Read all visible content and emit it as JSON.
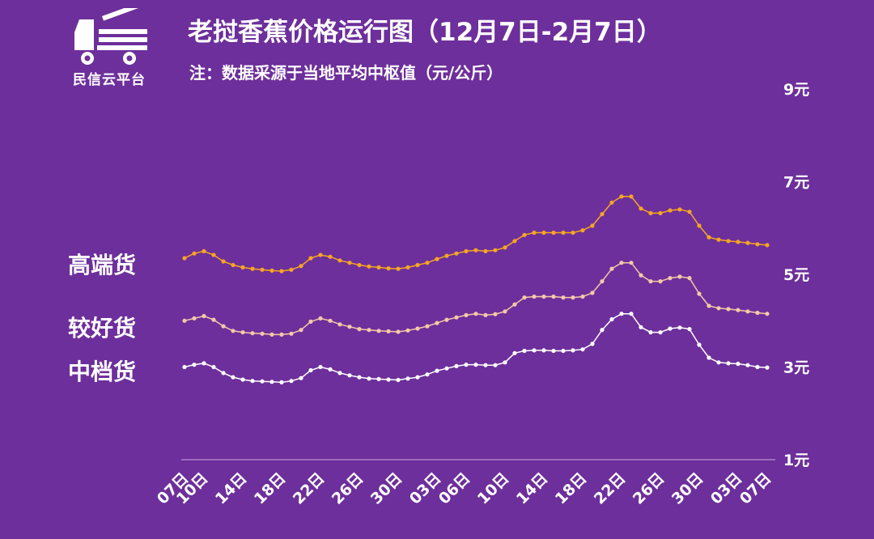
{
  "brand": {
    "name": "民信云平台"
  },
  "chart_data": {
    "type": "line",
    "title": "老挝香蕉价格运行图（12月7日-2月7日）",
    "subtitle": "注：数据采源于当地平均中枢值（元/公斤）",
    "ylim": [
      1,
      9
    ],
    "y_ticks": [
      1,
      3,
      5,
      7,
      9
    ],
    "y_tick_labels": [
      "1元",
      "3元",
      "5元",
      "7元",
      "9元"
    ],
    "x_tick_labels": [
      "07日",
      "10日",
      "14日",
      "18日",
      "22日",
      "26日",
      "30日",
      "03日",
      "06日",
      "10日",
      "14日",
      "18日",
      "22日",
      "26日",
      "30日",
      "03日",
      "07日"
    ],
    "x_tick_index": [
      0,
      2,
      6,
      10,
      14,
      18,
      22,
      26,
      29,
      33,
      37,
      41,
      45,
      49,
      53,
      57,
      60
    ],
    "series": [
      {
        "name": "高端货",
        "color": "#f5a623",
        "values": [
          5.35,
          5.45,
          5.5,
          5.42,
          5.28,
          5.2,
          5.15,
          5.12,
          5.1,
          5.08,
          5.07,
          5.1,
          5.18,
          5.35,
          5.42,
          5.38,
          5.3,
          5.25,
          5.2,
          5.17,
          5.15,
          5.13,
          5.12,
          5.15,
          5.2,
          5.25,
          5.33,
          5.4,
          5.45,
          5.5,
          5.52,
          5.5,
          5.52,
          5.58,
          5.72,
          5.85,
          5.9,
          5.9,
          5.9,
          5.9,
          5.9,
          5.95,
          6.05,
          6.3,
          6.55,
          6.68,
          6.68,
          6.42,
          6.32,
          6.32,
          6.38,
          6.4,
          6.35,
          6.05,
          5.8,
          5.75,
          5.72,
          5.7,
          5.68,
          5.65,
          5.63
        ]
      },
      {
        "name": "较好货",
        "color": "#f4c9a8",
        "values": [
          4.0,
          4.05,
          4.1,
          4.02,
          3.88,
          3.78,
          3.75,
          3.73,
          3.72,
          3.7,
          3.7,
          3.72,
          3.8,
          3.98,
          4.05,
          4.0,
          3.92,
          3.87,
          3.82,
          3.8,
          3.78,
          3.77,
          3.76,
          3.79,
          3.83,
          3.88,
          3.95,
          4.02,
          4.07,
          4.12,
          4.15,
          4.12,
          4.14,
          4.2,
          4.35,
          4.5,
          4.52,
          4.52,
          4.52,
          4.5,
          4.5,
          4.52,
          4.6,
          4.85,
          5.12,
          5.25,
          5.25,
          4.98,
          4.85,
          4.85,
          4.92,
          4.95,
          4.92,
          4.58,
          4.32,
          4.27,
          4.25,
          4.23,
          4.2,
          4.17,
          4.15
        ]
      },
      {
        "name": "中档货",
        "color": "#ffffff",
        "values": [
          3.0,
          3.05,
          3.08,
          3.0,
          2.87,
          2.78,
          2.73,
          2.7,
          2.69,
          2.68,
          2.67,
          2.7,
          2.76,
          2.93,
          3.0,
          2.95,
          2.87,
          2.82,
          2.78,
          2.75,
          2.74,
          2.73,
          2.72,
          2.75,
          2.78,
          2.84,
          2.92,
          2.97,
          3.02,
          3.05,
          3.05,
          3.04,
          3.04,
          3.1,
          3.3,
          3.35,
          3.36,
          3.36,
          3.35,
          3.35,
          3.36,
          3.38,
          3.5,
          3.8,
          4.03,
          4.15,
          4.15,
          3.86,
          3.75,
          3.75,
          3.83,
          3.85,
          3.82,
          3.48,
          3.2,
          3.1,
          3.08,
          3.07,
          3.04,
          3.0,
          2.99
        ]
      }
    ]
  }
}
